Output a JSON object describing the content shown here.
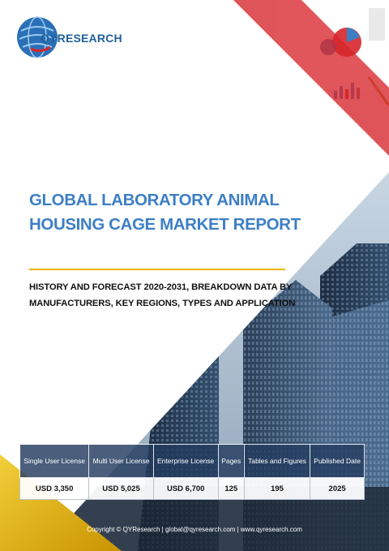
{
  "brand": {
    "name": "QYRESEARCH"
  },
  "report": {
    "title": "GLOBAL LABORATORY ANIMAL HOUSING CAGE MARKET REPORT",
    "subtitle": "HISTORY AND FORECAST 2020-2031, BREAKDOWN DATA BY MANUFACTURERS, KEY REGIONS, TYPES AND APPLICATION"
  },
  "table": {
    "headers": [
      "Single User License",
      "Multi User License",
      "Enterprise License",
      "Pages",
      "Tables and Figures",
      "Published Date"
    ],
    "values": [
      "USD 3,350",
      "USD 5,025",
      "USD 6,700",
      "125",
      "195",
      "2025"
    ]
  },
  "footer": {
    "text": "Copyright © QYResearch | global@qyresearch.com | www.qyresearch.com"
  },
  "colors": {
    "title": "#3d7fc4",
    "accent_red": "#d7262b",
    "rule_gold": "#e8b400",
    "table_header": "#233c5f"
  }
}
